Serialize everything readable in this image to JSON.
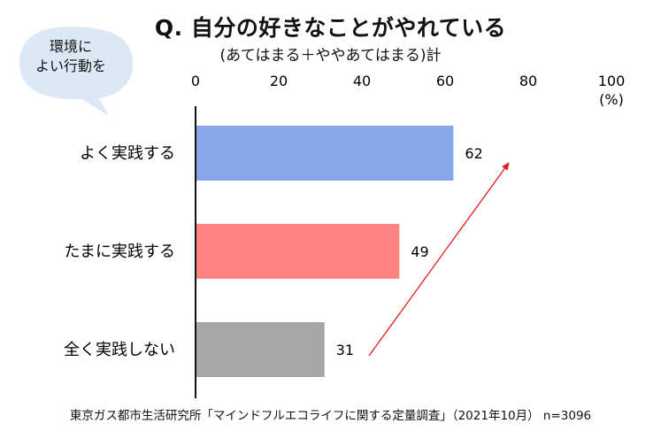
{
  "header": {
    "title": "Q. 自分の好きなことがやれている",
    "subtitle": "(あてはまる＋ややあてはまる)計"
  },
  "bubble": {
    "line1": "環境に",
    "line2": "よい行動を"
  },
  "footnote": "東京ガス都市生活研究所「マインドフルエコライフに関する定量調査」（2021年10月） n=3096",
  "colors": {
    "bubble_fill": "#dde8f7",
    "axis": "#111111",
    "arrow": "#e01b1b"
  },
  "chart_data": {
    "type": "bar",
    "orientation": "horizontal",
    "title": "Q. 自分の好きなことがやれている",
    "subtitle": "(あてはまる＋ややあてはまる)計",
    "categories": [
      "よく実践する",
      "たまに実践する",
      "全く実践しない"
    ],
    "values": [
      62,
      49,
      31
    ],
    "colors": [
      "#87a5e8",
      "#ff8585",
      "#a6a6a6"
    ],
    "xlim": [
      0,
      100
    ],
    "xticks": [
      0,
      20,
      40,
      60,
      80,
      100
    ],
    "unit_label": "(%)",
    "grid": false,
    "annotation": "increasing trend arrow from 全く実践しない toward よく実践する"
  }
}
